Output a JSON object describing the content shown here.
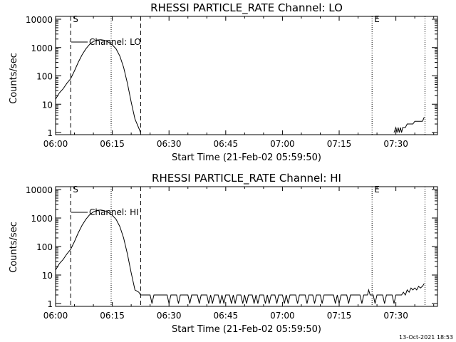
{
  "footer": {
    "timestamp": "13-Oct-2021 18:53"
  },
  "chart_data": [
    {
      "type": "line",
      "title": "RHESSI PARTICLE_RATE Channel: LO",
      "xlabel": "Start Time (21-Feb-02 05:59:50)",
      "ylabel": "Counts/sec",
      "yscale": "log",
      "xlim_min": [
        0,
        101
      ],
      "ylim": [
        0.9,
        12000
      ],
      "xtick_values": [
        0,
        15,
        30,
        45,
        60,
        75,
        90
      ],
      "xtick_labels": [
        "06:00",
        "06:15",
        "06:30",
        "06:45",
        "07:00",
        "07:15",
        "07:30"
      ],
      "ytick_values": [
        1,
        10,
        100,
        1000,
        10000
      ],
      "ytick_labels": [
        "1",
        "10",
        "100",
        "1000",
        "10000"
      ],
      "legend": {
        "label": "Channel: LO",
        "placement": "top-left"
      },
      "markers": [
        {
          "x_min": 4,
          "style": "dashed",
          "label": "S"
        },
        {
          "x_min": 14.7,
          "style": "dotted",
          "label": ""
        },
        {
          "x_min": 22.5,
          "style": "dashed",
          "label": ""
        },
        {
          "x_min": 83.7,
          "style": "dotted",
          "label": "E"
        },
        {
          "x_min": 97.7,
          "style": "dotted",
          "label": ""
        }
      ],
      "series": [
        {
          "name": "Channel: LO",
          "segments": [
            [
              [
                0,
                15
              ],
              [
                1,
                25
              ],
              [
                2,
                35
              ],
              [
                3,
                55
              ],
              [
                4,
                80
              ],
              [
                5,
                150
              ],
              [
                6,
                300
              ],
              [
                7,
                550
              ],
              [
                8,
                900
              ],
              [
                9,
                1300
              ],
              [
                10,
                1650
              ],
              [
                11,
                1850
              ],
              [
                12,
                1900
              ],
              [
                13,
                1800
              ],
              [
                14,
                1550
              ],
              [
                15,
                1250
              ],
              [
                16,
                900
              ],
              [
                17,
                500
              ],
              [
                18,
                200
              ],
              [
                19,
                55
              ],
              [
                20,
                12
              ],
              [
                21,
                3
              ],
              [
                22.5,
                1
              ]
            ],
            [
              [
                89.5,
                1
              ],
              [
                90,
                1.5
              ],
              [
                90.3,
                1
              ],
              [
                90.6,
                1.5
              ],
              [
                90.9,
                1
              ],
              [
                91.2,
                1.5
              ],
              [
                91.5,
                1
              ],
              [
                91.8,
                1.5
              ],
              [
                92.5,
                1.5
              ],
              [
                93,
                2
              ],
              [
                94.5,
                2
              ],
              [
                95,
                2.5
              ],
              [
                97,
                2.5
              ],
              [
                97.3,
                3
              ],
              [
                97.5,
                3.5
              ]
            ]
          ]
        }
      ]
    },
    {
      "type": "line",
      "title": "RHESSI PARTICLE_RATE Channel: HI",
      "xlabel": "Start Time (21-Feb-02 05:59:50)",
      "ylabel": "Counts/sec",
      "yscale": "log",
      "xlim_min": [
        0,
        101
      ],
      "ylim": [
        0.9,
        12000
      ],
      "xtick_values": [
        0,
        15,
        30,
        45,
        60,
        75,
        90
      ],
      "xtick_labels": [
        "06:00",
        "06:15",
        "06:30",
        "06:45",
        "07:00",
        "07:15",
        "07:30"
      ],
      "ytick_values": [
        1,
        10,
        100,
        1000,
        10000
      ],
      "ytick_labels": [
        "1",
        "10",
        "100",
        "1000",
        "10000"
      ],
      "legend": {
        "label": "Channel: HI",
        "placement": "top-left"
      },
      "markers": [
        {
          "x_min": 4,
          "style": "dashed",
          "label": "S"
        },
        {
          "x_min": 14.7,
          "style": "dotted",
          "label": ""
        },
        {
          "x_min": 22.5,
          "style": "dashed",
          "label": ""
        },
        {
          "x_min": 83.7,
          "style": "dotted",
          "label": "E"
        },
        {
          "x_min": 97.7,
          "style": "dotted",
          "label": ""
        }
      ],
      "series": [
        {
          "name": "Channel: HI",
          "segments": [
            [
              [
                0,
                15
              ],
              [
                1,
                25
              ],
              [
                2,
                35
              ],
              [
                3,
                55
              ],
              [
                4,
                80
              ],
              [
                5,
                150
              ],
              [
                6,
                300
              ],
              [
                7,
                550
              ],
              [
                8,
                900
              ],
              [
                9,
                1300
              ],
              [
                10,
                1650
              ],
              [
                11,
                1850
              ],
              [
                12,
                1900
              ],
              [
                13,
                1800
              ],
              [
                14,
                1550
              ],
              [
                15,
                1250
              ],
              [
                16,
                900
              ],
              [
                17,
                500
              ],
              [
                18,
                200
              ],
              [
                19,
                55
              ],
              [
                20,
                12
              ],
              [
                21,
                3
              ],
              [
                22,
                2.5
              ],
              [
                22.5,
                2
              ],
              [
                25,
                2
              ],
              [
                25.5,
                1
              ],
              [
                26,
                2
              ],
              [
                27,
                2
              ],
              [
                29.5,
                2
              ],
              [
                30,
                1
              ],
              [
                30.5,
                2
              ],
              [
                32,
                2
              ],
              [
                32.5,
                1
              ],
              [
                33,
                2
              ],
              [
                35,
                2
              ],
              [
                35.5,
                1
              ],
              [
                36,
                2
              ],
              [
                37.5,
                2
              ],
              [
                38,
                1
              ],
              [
                38.5,
                2
              ],
              [
                40,
                2
              ],
              [
                40.5,
                1
              ],
              [
                41,
                2
              ],
              [
                41.5,
                1
              ],
              [
                42,
                2
              ],
              [
                43,
                2
              ],
              [
                43.5,
                1
              ],
              [
                44,
                2
              ],
              [
                44.5,
                1
              ],
              [
                45,
                2
              ],
              [
                46,
                2
              ],
              [
                46.5,
                1
              ],
              [
                47,
                2
              ],
              [
                47.5,
                1
              ],
              [
                48,
                2
              ],
              [
                49,
                2
              ],
              [
                49.5,
                1
              ],
              [
                50,
                2
              ],
              [
                50.5,
                1
              ],
              [
                51,
                2
              ],
              [
                52,
                2
              ],
              [
                52.5,
                1
              ],
              [
                53,
                2
              ],
              [
                53.5,
                1
              ],
              [
                54,
                2
              ],
              [
                55,
                2
              ],
              [
                55.5,
                1
              ],
              [
                56,
                2
              ],
              [
                56.5,
                1
              ],
              [
                57,
                2
              ],
              [
                58,
                2
              ],
              [
                58.5,
                1
              ],
              [
                59,
                2
              ],
              [
                60,
                2
              ],
              [
                60.5,
                1
              ],
              [
                61,
                2
              ],
              [
                61.5,
                1
              ],
              [
                62,
                2
              ],
              [
                63.5,
                2
              ],
              [
                64,
                1
              ],
              [
                64.5,
                2
              ],
              [
                66,
                2
              ],
              [
                66.5,
                1
              ],
              [
                67,
                2
              ],
              [
                68,
                2
              ],
              [
                68.5,
                1
              ],
              [
                69,
                2
              ],
              [
                70,
                2
              ],
              [
                70.5,
                1
              ],
              [
                71,
                2
              ],
              [
                73.5,
                2
              ],
              [
                74,
                1
              ],
              [
                74.5,
                2
              ],
              [
                75,
                1
              ],
              [
                75.5,
                2
              ],
              [
                77,
                2
              ],
              [
                77.5,
                1
              ],
              [
                78,
                2
              ],
              [
                80.5,
                2
              ],
              [
                81,
                1
              ],
              [
                81.5,
                2
              ],
              [
                82.5,
                2
              ],
              [
                82.8,
                3
              ],
              [
                83.2,
                2
              ],
              [
                84,
                2
              ],
              [
                84.5,
                1
              ],
              [
                85,
                2
              ],
              [
                86.5,
                2
              ],
              [
                87,
                1
              ],
              [
                87.5,
                2
              ],
              [
                89,
                2
              ],
              [
                89.5,
                1
              ],
              [
                90,
                2
              ],
              [
                91.5,
                2
              ],
              [
                92,
                2.5
              ],
              [
                92.5,
                2
              ],
              [
                93,
                3
              ],
              [
                93.5,
                2.5
              ],
              [
                94,
                3.5
              ],
              [
                94.5,
                3
              ],
              [
                95,
                3.5
              ],
              [
                95.5,
                3
              ],
              [
                96,
                4
              ],
              [
                96.5,
                3.5
              ],
              [
                97,
                4
              ],
              [
                97.5,
                5
              ]
            ]
          ]
        }
      ]
    }
  ]
}
